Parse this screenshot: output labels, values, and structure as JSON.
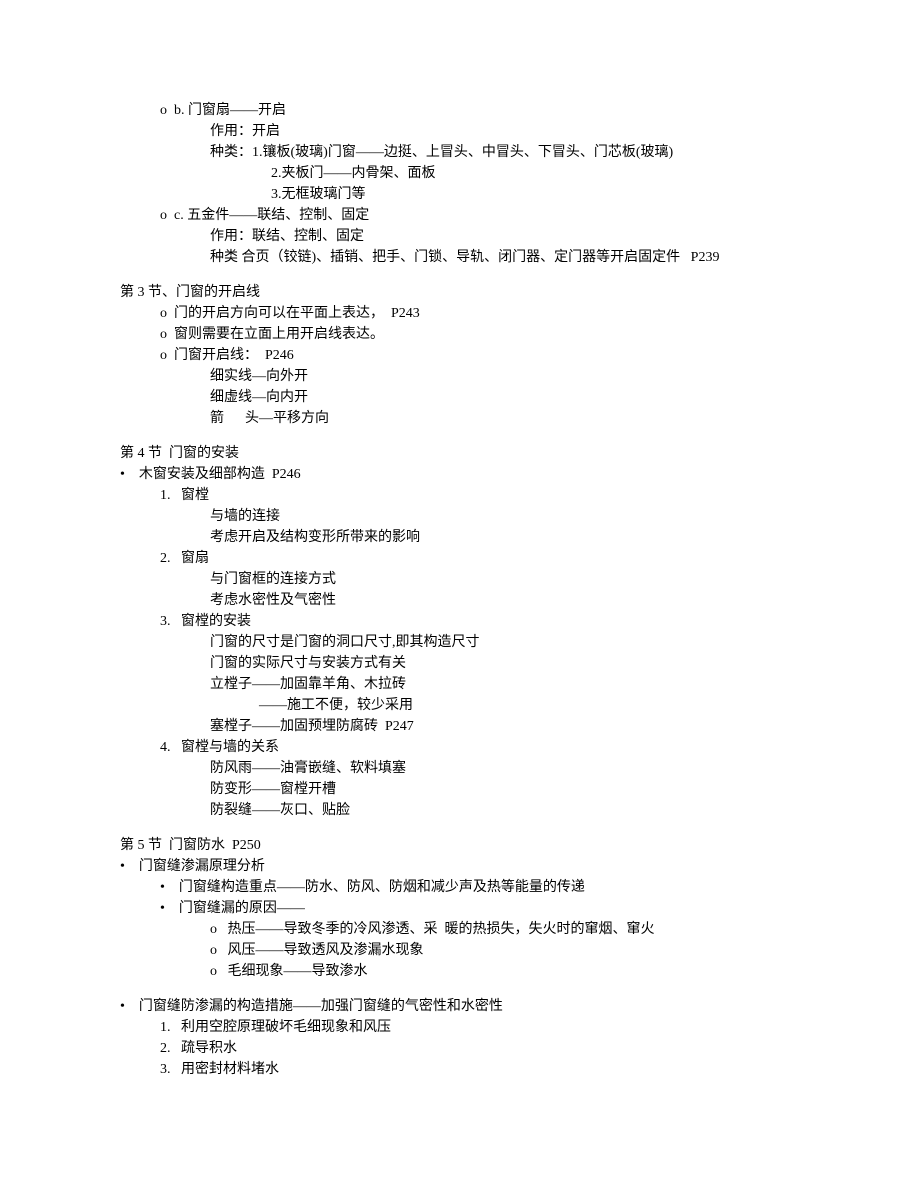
{
  "colors": {
    "text": "#000000",
    "background": "#ffffff"
  },
  "typography": {
    "font_family": "SimSun",
    "font_size": 14,
    "line_height": 1.5
  },
  "lines": [
    {
      "indent": 1,
      "prefix": "o  ",
      "text": "b. 门窗扇——开启"
    },
    {
      "indent": 3,
      "prefix": "",
      "text": "作用：开启"
    },
    {
      "indent": 3,
      "prefix": "",
      "text": "种类：1.镶板(玻璃)门窗——边挺、上冒头、中冒头、下冒头、门芯板(玻璃)"
    },
    {
      "indent": 4,
      "prefix": "      ",
      "text": "2.夹板门——内骨架、面板"
    },
    {
      "indent": 4,
      "prefix": "      ",
      "text": "3.无框玻璃门等"
    },
    {
      "indent": 1,
      "prefix": "o  ",
      "text": "c. 五金件——联结、控制、固定"
    },
    {
      "indent": 3,
      "prefix": "",
      "text": "作用：联结、控制、固定"
    },
    {
      "indent": 3,
      "prefix": "",
      "text": "种类 合页（铰链)、插销、把手、门锁、导轨、闭门器、定门器等开启固定件   P239"
    },
    {
      "gap": true
    },
    {
      "indent": 0,
      "prefix": "",
      "text": "第 3 节、门窗的开启线"
    },
    {
      "indent": 1,
      "prefix": "o  ",
      "text": "门的开启方向可以在平面上表达，  P243"
    },
    {
      "indent": 1,
      "prefix": "o  ",
      "text": "窗则需要在立面上用开启线表达。"
    },
    {
      "indent": 1,
      "prefix": "o  ",
      "text": "门窗开启线：  P246"
    },
    {
      "indent": 3,
      "prefix": "",
      "text": "细实线—向外开"
    },
    {
      "indent": 3,
      "prefix": "",
      "text": "细虚线—向内开"
    },
    {
      "indent": 3,
      "prefix": "",
      "text": "箭      头—平移方向"
    },
    {
      "gap": true
    },
    {
      "indent": 0,
      "prefix": "",
      "text": "第 4 节  门窗的安装"
    },
    {
      "indent": 0,
      "prefix": "•    ",
      "text": "木窗安装及细部构造  P246"
    },
    {
      "indent": 1,
      "prefix": "1.   ",
      "text": "窗樘"
    },
    {
      "indent": 3,
      "prefix": "",
      "text": "与墙的连接"
    },
    {
      "indent": 3,
      "prefix": "",
      "text": "考虑开启及结构变形所带来的影响"
    },
    {
      "indent": 1,
      "prefix": "2.   ",
      "text": "窗扇"
    },
    {
      "indent": 3,
      "prefix": "",
      "text": "与门窗框的连接方式"
    },
    {
      "indent": 3,
      "prefix": "",
      "text": "考虑水密性及气密性"
    },
    {
      "indent": 1,
      "prefix": "3.   ",
      "text": "窗樘的安装"
    },
    {
      "indent": 3,
      "prefix": "",
      "text": "门窗的尺寸是门窗的洞口尺寸,即其构造尺寸"
    },
    {
      "indent": 3,
      "prefix": "",
      "text": "门窗的实际尺寸与安装方式有关"
    },
    {
      "indent": 3,
      "prefix": "",
      "text": "立樘子——加固靠羊角、木拉砖"
    },
    {
      "indent": 3,
      "prefix": "",
      "text": "              ——施工不便，较少采用"
    },
    {
      "indent": 3,
      "prefix": "",
      "text": "塞樘子——加固预埋防腐砖  P247"
    },
    {
      "indent": 1,
      "prefix": "4.   ",
      "text": "窗樘与墙的关系"
    },
    {
      "indent": 3,
      "prefix": "",
      "text": "防风雨——油膏嵌缝、软料填塞"
    },
    {
      "indent": 3,
      "prefix": "",
      "text": "防变形——窗樘开槽"
    },
    {
      "indent": 3,
      "prefix": "",
      "text": "防裂缝——灰口、贴脸"
    },
    {
      "gap": true
    },
    {
      "indent": 0,
      "prefix": "",
      "text": "第 5 节  门窗防水  P250"
    },
    {
      "indent": 0,
      "prefix": "•    ",
      "text": "门窗缝渗漏原理分析"
    },
    {
      "indent": 1,
      "prefix": "•    ",
      "text": "门窗缝构造重点——防水、防风、防烟和减少声及热等能量的传递"
    },
    {
      "indent": 1,
      "prefix": "•    ",
      "text": "门窗缝漏的原因——"
    },
    {
      "indent": 3,
      "prefix": "o   ",
      "text": "热压——导致冬季的冷风渗透、采  暖的热损失，失火时的窜烟、窜火"
    },
    {
      "indent": 3,
      "prefix": "o   ",
      "text": "风压——导致透风及渗漏水现象"
    },
    {
      "indent": 3,
      "prefix": "o   ",
      "text": "毛细现象——导致渗水"
    },
    {
      "gap": true
    },
    {
      "indent": 0,
      "prefix": "•    ",
      "text": "门窗缝防渗漏的构造措施——加强门窗缝的气密性和水密性"
    },
    {
      "indent": 1,
      "prefix": "1.   ",
      "text": "利用空腔原理破坏毛细现象和风压"
    },
    {
      "indent": 1,
      "prefix": "2.   ",
      "text": "疏导积水"
    },
    {
      "indent": 1,
      "prefix": "3.   ",
      "text": "用密封材料堵水"
    }
  ]
}
